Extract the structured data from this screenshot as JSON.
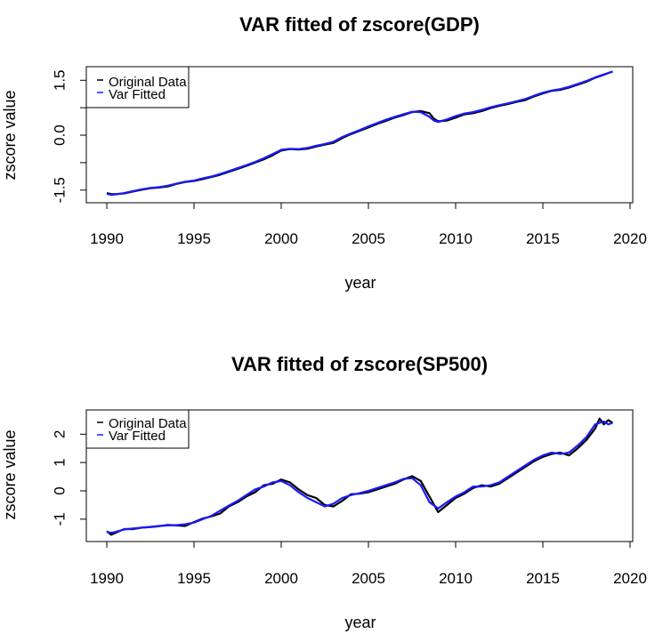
{
  "chart_data": [
    {
      "type": "line",
      "title": "VAR fitted of zscore(GDP)",
      "xlabel": "year",
      "ylabel": "zscore value",
      "xlim": [
        1990,
        2020
      ],
      "ylim": [
        -1.7,
        1.75
      ],
      "x_ticks": [
        1990,
        1995,
        2000,
        2005,
        2010,
        2015,
        2020
      ],
      "x_tick_labels": [
        "1990",
        "1995",
        "2000",
        "2005",
        "2010",
        "2015",
        "2020"
      ],
      "y_ticks": [
        -1.5,
        -0.75,
        0.0,
        0.75,
        1.5
      ],
      "y_tick_labels": [
        "-1.5",
        "",
        "0.0",
        "",
        "1.5"
      ],
      "legend": {
        "position": "top-left",
        "entries": [
          "Original Data",
          "Var Fitted"
        ]
      },
      "series": [
        {
          "name": "Original Data",
          "color": "#000000",
          "points": [
            [
              1990.0,
              -1.58
            ],
            [
              1990.25,
              -1.61
            ],
            [
              1990.5,
              -1.61
            ],
            [
              1991.0,
              -1.59
            ],
            [
              1991.5,
              -1.54
            ],
            [
              1992.0,
              -1.49
            ],
            [
              1992.5,
              -1.45
            ],
            [
              1993.0,
              -1.43
            ],
            [
              1993.5,
              -1.4
            ],
            [
              1994.0,
              -1.33
            ],
            [
              1994.5,
              -1.28
            ],
            [
              1995.0,
              -1.25
            ],
            [
              1995.5,
              -1.2
            ],
            [
              1996.0,
              -1.14
            ],
            [
              1996.5,
              -1.08
            ],
            [
              1997.0,
              -1.0
            ],
            [
              1997.5,
              -0.92
            ],
            [
              1998.0,
              -0.84
            ],
            [
              1998.5,
              -0.75
            ],
            [
              1999.0,
              -0.66
            ],
            [
              1999.5,
              -0.55
            ],
            [
              2000.0,
              -0.42
            ],
            [
              2000.5,
              -0.38
            ],
            [
              2001.0,
              -0.39
            ],
            [
              2001.5,
              -0.37
            ],
            [
              2002.0,
              -0.31
            ],
            [
              2002.5,
              -0.26
            ],
            [
              2003.0,
              -0.21
            ],
            [
              2003.5,
              -0.08
            ],
            [
              2004.0,
              0.03
            ],
            [
              2004.5,
              0.12
            ],
            [
              2005.0,
              0.21
            ],
            [
              2005.5,
              0.31
            ],
            [
              2006.0,
              0.39
            ],
            [
              2006.5,
              0.48
            ],
            [
              2007.0,
              0.55
            ],
            [
              2007.5,
              0.63
            ],
            [
              2008.0,
              0.66
            ],
            [
              2008.5,
              0.6
            ],
            [
              2008.75,
              0.45
            ],
            [
              2009.0,
              0.38
            ],
            [
              2009.5,
              0.4
            ],
            [
              2010.0,
              0.48
            ],
            [
              2010.5,
              0.57
            ],
            [
              2011.0,
              0.6
            ],
            [
              2011.5,
              0.66
            ],
            [
              2012.0,
              0.74
            ],
            [
              2012.5,
              0.8
            ],
            [
              2013.0,
              0.85
            ],
            [
              2013.5,
              0.91
            ],
            [
              2014.0,
              0.96
            ],
            [
              2014.5,
              1.06
            ],
            [
              2015.0,
              1.14
            ],
            [
              2015.5,
              1.21
            ],
            [
              2016.0,
              1.24
            ],
            [
              2016.5,
              1.3
            ],
            [
              2017.0,
              1.38
            ],
            [
              2017.5,
              1.46
            ],
            [
              2018.0,
              1.57
            ],
            [
              2018.5,
              1.65
            ],
            [
              2019.0,
              1.74
            ]
          ]
        },
        {
          "name": "Var Fitted",
          "color": "#1a1aff",
          "points": [
            [
              1990.0,
              -1.6
            ],
            [
              1990.25,
              -1.63
            ],
            [
              1990.5,
              -1.62
            ],
            [
              1991.0,
              -1.58
            ],
            [
              1991.5,
              -1.53
            ],
            [
              1992.0,
              -1.48
            ],
            [
              1992.5,
              -1.44
            ],
            [
              1993.0,
              -1.42
            ],
            [
              1993.5,
              -1.38
            ],
            [
              1994.0,
              -1.32
            ],
            [
              1994.5,
              -1.27
            ],
            [
              1995.0,
              -1.24
            ],
            [
              1995.5,
              -1.18
            ],
            [
              1996.0,
              -1.13
            ],
            [
              1996.5,
              -1.06
            ],
            [
              1997.0,
              -0.98
            ],
            [
              1997.5,
              -0.9
            ],
            [
              1998.0,
              -0.82
            ],
            [
              1998.5,
              -0.73
            ],
            [
              1999.0,
              -0.63
            ],
            [
              1999.5,
              -0.52
            ],
            [
              2000.0,
              -0.4
            ],
            [
              2000.5,
              -0.37
            ],
            [
              2001.0,
              -0.38
            ],
            [
              2001.5,
              -0.35
            ],
            [
              2002.0,
              -0.29
            ],
            [
              2002.5,
              -0.24
            ],
            [
              2003.0,
              -0.18
            ],
            [
              2003.5,
              -0.05
            ],
            [
              2004.0,
              0.05
            ],
            [
              2004.5,
              0.14
            ],
            [
              2005.0,
              0.24
            ],
            [
              2005.5,
              0.33
            ],
            [
              2006.0,
              0.42
            ],
            [
              2006.5,
              0.5
            ],
            [
              2007.0,
              0.57
            ],
            [
              2007.5,
              0.64
            ],
            [
              2008.0,
              0.63
            ],
            [
              2008.5,
              0.5
            ],
            [
              2008.75,
              0.4
            ],
            [
              2009.0,
              0.36
            ],
            [
              2009.5,
              0.43
            ],
            [
              2010.0,
              0.52
            ],
            [
              2010.5,
              0.59
            ],
            [
              2011.0,
              0.63
            ],
            [
              2011.5,
              0.69
            ],
            [
              2012.0,
              0.76
            ],
            [
              2012.5,
              0.82
            ],
            [
              2013.0,
              0.87
            ],
            [
              2013.5,
              0.93
            ],
            [
              2014.0,
              0.99
            ],
            [
              2014.5,
              1.08
            ],
            [
              2015.0,
              1.16
            ],
            [
              2015.5,
              1.22
            ],
            [
              2016.0,
              1.26
            ],
            [
              2016.5,
              1.32
            ],
            [
              2017.0,
              1.4
            ],
            [
              2017.5,
              1.48
            ],
            [
              2018.0,
              1.58
            ],
            [
              2018.5,
              1.66
            ],
            [
              2019.0,
              1.74
            ]
          ]
        }
      ]
    },
    {
      "type": "line",
      "title": "VAR fitted of zscore(SP500)",
      "xlabel": "year",
      "ylabel": "zscore value",
      "xlim": [
        1990,
        2020
      ],
      "ylim": [
        -1.6,
        2.7
      ],
      "x_ticks": [
        1990,
        1995,
        2000,
        2005,
        2010,
        2015,
        2020
      ],
      "x_tick_labels": [
        "1990",
        "1995",
        "2000",
        "2005",
        "2010",
        "2015",
        "2020"
      ],
      "y_ticks": [
        -1,
        0,
        1,
        2
      ],
      "y_tick_labels": [
        "-1",
        "0",
        "1",
        "2"
      ],
      "legend": {
        "position": "top-left",
        "entries": [
          "Original Data",
          "Var Fitted"
        ]
      },
      "series": [
        {
          "name": "Original Data",
          "color": "#000000",
          "points": [
            [
              1990.0,
              -1.42
            ],
            [
              1990.25,
              -1.55
            ],
            [
              1990.5,
              -1.48
            ],
            [
              1991.0,
              -1.35
            ],
            [
              1991.5,
              -1.35
            ],
            [
              1992.0,
              -1.3
            ],
            [
              1992.5,
              -1.28
            ],
            [
              1993.0,
              -1.25
            ],
            [
              1993.5,
              -1.2
            ],
            [
              1994.0,
              -1.22
            ],
            [
              1994.5,
              -1.24
            ],
            [
              1995.0,
              -1.1
            ],
            [
              1995.5,
              -0.98
            ],
            [
              1996.0,
              -0.9
            ],
            [
              1996.5,
              -0.8
            ],
            [
              1997.0,
              -0.55
            ],
            [
              1997.5,
              -0.4
            ],
            [
              1998.0,
              -0.2
            ],
            [
              1998.5,
              -0.05
            ],
            [
              1999.0,
              0.2
            ],
            [
              1999.5,
              0.25
            ],
            [
              2000.0,
              0.4
            ],
            [
              2000.5,
              0.3
            ],
            [
              2001.0,
              0.05
            ],
            [
              2001.5,
              -0.15
            ],
            [
              2002.0,
              -0.25
            ],
            [
              2002.5,
              -0.5
            ],
            [
              2003.0,
              -0.55
            ],
            [
              2003.5,
              -0.35
            ],
            [
              2004.0,
              -0.12
            ],
            [
              2004.5,
              -0.1
            ],
            [
              2005.0,
              -0.05
            ],
            [
              2005.5,
              0.05
            ],
            [
              2006.0,
              0.15
            ],
            [
              2006.5,
              0.25
            ],
            [
              2007.0,
              0.4
            ],
            [
              2007.5,
              0.52
            ],
            [
              2008.0,
              0.35
            ],
            [
              2008.5,
              -0.2
            ],
            [
              2009.0,
              -0.75
            ],
            [
              2009.5,
              -0.5
            ],
            [
              2010.0,
              -0.25
            ],
            [
              2010.5,
              -0.1
            ],
            [
              2011.0,
              0.1
            ],
            [
              2011.5,
              0.2
            ],
            [
              2012.0,
              0.15
            ],
            [
              2012.5,
              0.25
            ],
            [
              2013.0,
              0.45
            ],
            [
              2013.5,
              0.65
            ],
            [
              2014.0,
              0.85
            ],
            [
              2014.5,
              1.05
            ],
            [
              2015.0,
              1.2
            ],
            [
              2015.5,
              1.3
            ],
            [
              2016.0,
              1.35
            ],
            [
              2016.5,
              1.25
            ],
            [
              2017.0,
              1.5
            ],
            [
              2017.5,
              1.8
            ],
            [
              2018.0,
              2.2
            ],
            [
              2018.25,
              2.55
            ],
            [
              2018.5,
              2.35
            ],
            [
              2018.75,
              2.5
            ],
            [
              2019.0,
              2.4
            ]
          ]
        },
        {
          "name": "Var Fitted",
          "color": "#1a1aff",
          "points": [
            [
              1990.0,
              -1.45
            ],
            [
              1990.25,
              -1.48
            ],
            [
              1990.5,
              -1.45
            ],
            [
              1991.0,
              -1.36
            ],
            [
              1991.5,
              -1.33
            ],
            [
              1992.0,
              -1.3
            ],
            [
              1992.5,
              -1.27
            ],
            [
              1993.0,
              -1.24
            ],
            [
              1993.5,
              -1.22
            ],
            [
              1994.0,
              -1.21
            ],
            [
              1994.5,
              -1.18
            ],
            [
              1995.0,
              -1.12
            ],
            [
              1995.5,
              -1.0
            ],
            [
              1996.0,
              -0.88
            ],
            [
              1996.5,
              -0.7
            ],
            [
              1997.0,
              -0.52
            ],
            [
              1997.5,
              -0.35
            ],
            [
              1998.0,
              -0.15
            ],
            [
              1998.5,
              0.05
            ],
            [
              1999.0,
              0.15
            ],
            [
              1999.5,
              0.3
            ],
            [
              2000.0,
              0.35
            ],
            [
              2000.5,
              0.2
            ],
            [
              2001.0,
              -0.05
            ],
            [
              2001.5,
              -0.25
            ],
            [
              2002.0,
              -0.4
            ],
            [
              2002.5,
              -0.55
            ],
            [
              2003.0,
              -0.45
            ],
            [
              2003.5,
              -0.25
            ],
            [
              2004.0,
              -0.15
            ],
            [
              2004.5,
              -0.08
            ],
            [
              2005.0,
              0.0
            ],
            [
              2005.5,
              0.1
            ],
            [
              2006.0,
              0.2
            ],
            [
              2006.5,
              0.3
            ],
            [
              2007.0,
              0.42
            ],
            [
              2007.5,
              0.45
            ],
            [
              2008.0,
              0.2
            ],
            [
              2008.5,
              -0.4
            ],
            [
              2009.0,
              -0.62
            ],
            [
              2009.5,
              -0.4
            ],
            [
              2010.0,
              -0.2
            ],
            [
              2010.5,
              -0.05
            ],
            [
              2011.0,
              0.15
            ],
            [
              2011.5,
              0.15
            ],
            [
              2012.0,
              0.2
            ],
            [
              2012.5,
              0.3
            ],
            [
              2013.0,
              0.5
            ],
            [
              2013.5,
              0.7
            ],
            [
              2014.0,
              0.9
            ],
            [
              2014.5,
              1.1
            ],
            [
              2015.0,
              1.25
            ],
            [
              2015.5,
              1.35
            ],
            [
              2016.0,
              1.3
            ],
            [
              2016.5,
              1.35
            ],
            [
              2017.0,
              1.6
            ],
            [
              2017.5,
              1.9
            ],
            [
              2018.0,
              2.35
            ],
            [
              2018.25,
              2.4
            ],
            [
              2018.5,
              2.45
            ],
            [
              2018.75,
              2.35
            ],
            [
              2019.0,
              2.4
            ]
          ]
        }
      ]
    }
  ]
}
